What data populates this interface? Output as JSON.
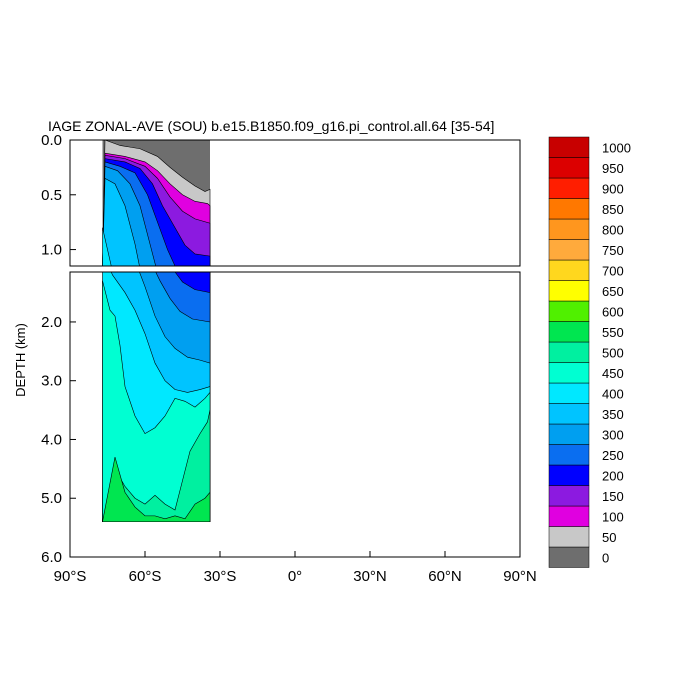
{
  "chart_data": {
    "type": "heatmap",
    "title": "IAGE ZONAL-AVE (SOU) b.e15.B1850.f09_g16.pi_control.all.64 [35-54]",
    "ylabel": "DEPTH (km)",
    "xlim": [
      -90,
      90
    ],
    "ylim": [
      6.0,
      0.0
    ],
    "upper_panel": {
      "ylim": [
        0.0,
        1.15
      ],
      "yticks": [
        {
          "value": 0.0,
          "label": "0.0"
        },
        {
          "value": 0.5,
          "label": "0.5"
        },
        {
          "value": 1.0,
          "label": "1.0"
        }
      ]
    },
    "lower_panel": {
      "ylim": [
        1.15,
        6.0
      ],
      "yticks": [
        {
          "value": 2.0,
          "label": "2.0"
        },
        {
          "value": 3.0,
          "label": "3.0"
        },
        {
          "value": 4.0,
          "label": "4.0"
        },
        {
          "value": 5.0,
          "label": "5.0"
        },
        {
          "value": 6.0,
          "label": "6.0"
        }
      ]
    },
    "xticks": [
      {
        "value": -90,
        "label": "90°S"
      },
      {
        "value": -60,
        "label": "60°S"
      },
      {
        "value": -30,
        "label": "30°S"
      },
      {
        "value": 0,
        "label": "0°"
      },
      {
        "value": 30,
        "label": "30°N"
      },
      {
        "value": 60,
        "label": "60°N"
      },
      {
        "value": 90,
        "label": "90°N"
      }
    ],
    "colorbar": {
      "labels": [
        "0",
        "50",
        "100",
        "150",
        "200",
        "250",
        "300",
        "350",
        "400",
        "450",
        "500",
        "550",
        "600",
        "650",
        "700",
        "750",
        "800",
        "850",
        "900",
        "950",
        "1000"
      ],
      "colors": [
        "#6e6e6e",
        "#c8c8c8",
        "#e000e0",
        "#8c1ae0",
        "#0000ff",
        "#0a6ef0",
        "#009ff0",
        "#00c4ff",
        "#00e8ff",
        "#00ffd2",
        "#00f0a0",
        "#00e650",
        "#50f000",
        "#ffff00",
        "#ffd71e",
        "#ffaa3c",
        "#ff961e",
        "#ff7800",
        "#ff1e00",
        "#dc0000",
        "#c80000"
      ]
    },
    "data_extent": {
      "lat_range": [
        -77,
        -34
      ],
      "depth_max": 5.4
    },
    "contour_levels": [
      {
        "level": 50,
        "boundary": [
          [
            -76,
            0.0
          ],
          [
            -70,
            0.05
          ],
          [
            -62,
            0.08
          ],
          [
            -55,
            0.15
          ],
          [
            -50,
            0.25
          ],
          [
            -45,
            0.34
          ],
          [
            -40,
            0.42
          ],
          [
            -36,
            0.47
          ],
          [
            -34,
            0.45
          ]
        ]
      },
      {
        "level": 100,
        "boundary": [
          [
            -76,
            0.12
          ],
          [
            -68,
            0.15
          ],
          [
            -60,
            0.2
          ],
          [
            -55,
            0.28
          ],
          [
            -50,
            0.4
          ],
          [
            -45,
            0.5
          ],
          [
            -40,
            0.56
          ],
          [
            -35,
            0.58
          ],
          [
            -34,
            0.6
          ]
        ]
      },
      {
        "level": 150,
        "boundary": [
          [
            -76,
            0.14
          ],
          [
            -68,
            0.17
          ],
          [
            -60,
            0.24
          ],
          [
            -55,
            0.35
          ],
          [
            -50,
            0.52
          ],
          [
            -45,
            0.65
          ],
          [
            -40,
            0.72
          ],
          [
            -34,
            0.76
          ]
        ]
      },
      {
        "level": 200,
        "boundary": [
          [
            -76,
            0.17
          ],
          [
            -68,
            0.2
          ],
          [
            -62,
            0.26
          ],
          [
            -57,
            0.4
          ],
          [
            -53,
            0.6
          ],
          [
            -48,
            0.8
          ],
          [
            -44,
            0.96
          ],
          [
            -40,
            1.04
          ],
          [
            -34,
            1.06
          ]
        ]
      },
      {
        "level": 250,
        "boundary": [
          [
            -76,
            0.2
          ],
          [
            -70,
            0.24
          ],
          [
            -64,
            0.3
          ],
          [
            -59,
            0.5
          ],
          [
            -55,
            0.75
          ],
          [
            -51,
            1.0
          ],
          [
            -48,
            1.15
          ],
          [
            -45,
            1.32
          ],
          [
            -40,
            1.45
          ],
          [
            -34,
            1.5
          ]
        ]
      },
      {
        "level": 300,
        "boundary": [
          [
            -76,
            0.24
          ],
          [
            -71,
            0.28
          ],
          [
            -66,
            0.4
          ],
          [
            -62,
            0.6
          ],
          [
            -58,
            0.95
          ],
          [
            -54,
            1.3
          ],
          [
            -50,
            1.6
          ],
          [
            -46,
            1.82
          ],
          [
            -41,
            1.95
          ],
          [
            -34,
            2.0
          ]
        ]
      },
      {
        "level": 350,
        "boundary": [
          [
            -76,
            0.35
          ],
          [
            -72,
            0.4
          ],
          [
            -68,
            0.6
          ],
          [
            -64,
            0.95
          ],
          [
            -60,
            1.4
          ],
          [
            -56,
            1.9
          ],
          [
            -52,
            2.25
          ],
          [
            -48,
            2.45
          ],
          [
            -43,
            2.6
          ],
          [
            -38,
            2.65
          ],
          [
            -34,
            2.7
          ]
        ]
      },
      {
        "level": 400,
        "boundary": [
          [
            -77,
            0.8
          ],
          [
            -73,
            1.2
          ],
          [
            -68,
            1.5
          ],
          [
            -64,
            1.8
          ],
          [
            -60,
            2.2
          ],
          [
            -56,
            2.7
          ],
          [
            -52,
            3.0
          ],
          [
            -48,
            3.15
          ],
          [
            -43,
            3.2
          ],
          [
            -38,
            3.15
          ],
          [
            -34,
            3.1
          ]
        ]
      },
      {
        "level": 450,
        "boundary": [
          [
            -77,
            1.3
          ],
          [
            -74,
            1.8
          ],
          [
            -72,
            1.9
          ],
          [
            -70,
            2.4
          ],
          [
            -68,
            3.1
          ],
          [
            -64,
            3.6
          ],
          [
            -60,
            3.9
          ],
          [
            -56,
            3.8
          ],
          [
            -52,
            3.6
          ],
          [
            -48,
            3.3
          ],
          [
            -44,
            3.35
          ],
          [
            -40,
            3.45
          ],
          [
            -36,
            3.3
          ],
          [
            -34,
            3.2
          ]
        ]
      },
      {
        "level": 500,
        "boundary": [
          [
            -72,
            4.5
          ],
          [
            -68,
            4.8
          ],
          [
            -64,
            5.0
          ],
          [
            -60,
            5.1
          ],
          [
            -56,
            4.95
          ],
          [
            -52,
            5.1
          ],
          [
            -48,
            5.2
          ],
          [
            -45,
            4.7
          ],
          [
            -42,
            4.2
          ],
          [
            -38,
            3.9
          ],
          [
            -35,
            3.7
          ],
          [
            -34,
            3.5
          ]
        ]
      },
      {
        "level": 550,
        "boundary": [
          [
            -72,
            4.3
          ],
          [
            -70,
            4.6
          ],
          [
            -68,
            4.9
          ],
          [
            -64,
            5.15
          ],
          [
            -60,
            5.3
          ],
          [
            -56,
            5.3
          ],
          [
            -52,
            5.35
          ],
          [
            -48,
            5.3
          ],
          [
            -44,
            5.35
          ],
          [
            -40,
            5.1
          ],
          [
            -36,
            5.0
          ],
          [
            -34,
            4.9
          ]
        ]
      }
    ]
  }
}
